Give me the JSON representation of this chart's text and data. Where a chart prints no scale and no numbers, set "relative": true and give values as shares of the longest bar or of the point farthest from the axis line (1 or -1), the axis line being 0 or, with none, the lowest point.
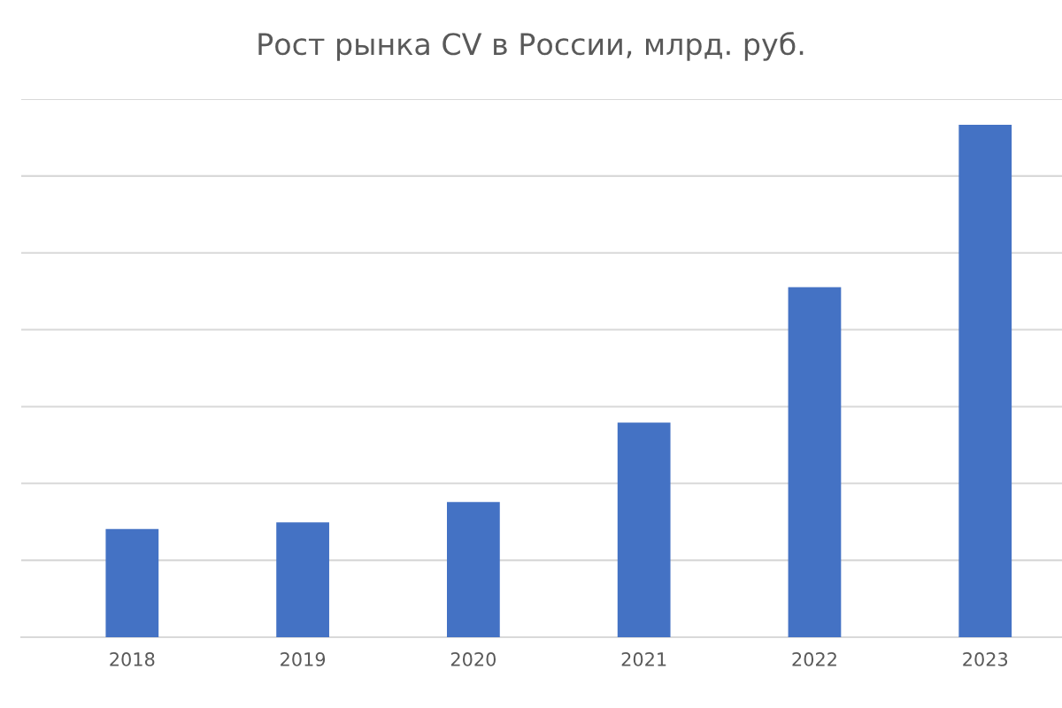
{
  "chart_data": {
    "type": "bar",
    "title": "Рост рынка CV в России, млрд. руб.",
    "categories": [
      "2018",
      "2019",
      "2020",
      "2021",
      "2022",
      "2023"
    ],
    "values": [
      0.211,
      0.224,
      0.264,
      0.419,
      0.683,
      1
    ],
    "color": "#4472c4",
    "relative": true,
    "grid": "y"
  }
}
